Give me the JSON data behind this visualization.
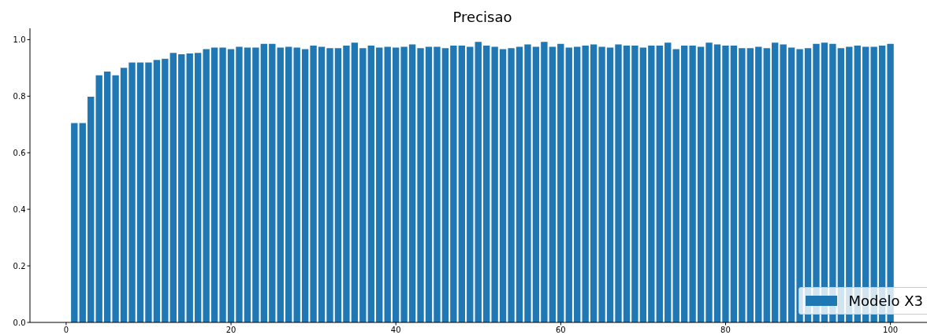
{
  "chart_data": {
    "type": "bar",
    "title": "Precisao",
    "x": [
      1,
      2,
      3,
      4,
      5,
      6,
      7,
      8,
      9,
      10,
      11,
      12,
      13,
      14,
      15,
      16,
      17,
      18,
      19,
      20,
      21,
      22,
      23,
      24,
      25,
      26,
      27,
      28,
      29,
      30,
      31,
      32,
      33,
      34,
      35,
      36,
      37,
      38,
      39,
      40,
      41,
      42,
      43,
      44,
      45,
      46,
      47,
      48,
      49,
      50,
      51,
      52,
      53,
      54,
      55,
      56,
      57,
      58,
      59,
      60,
      61,
      62,
      63,
      64,
      65,
      66,
      67,
      68,
      69,
      70,
      71,
      72,
      73,
      74,
      75,
      76,
      77,
      78,
      79,
      80,
      81,
      82,
      83,
      84,
      85,
      86,
      87,
      88,
      89,
      90,
      91,
      92,
      93,
      94,
      95,
      96,
      97,
      98,
      99,
      100
    ],
    "series": [
      {
        "name": "Modelo X3",
        "color": "#1f77b4",
        "values": [
          0.705,
          0.705,
          0.798,
          0.874,
          0.887,
          0.874,
          0.9,
          0.919,
          0.919,
          0.919,
          0.928,
          0.932,
          0.953,
          0.948,
          0.951,
          0.953,
          0.966,
          0.972,
          0.972,
          0.966,
          0.975,
          0.972,
          0.972,
          0.985,
          0.985,
          0.972,
          0.975,
          0.972,
          0.966,
          0.979,
          0.975,
          0.97,
          0.97,
          0.979,
          0.989,
          0.97,
          0.979,
          0.972,
          0.975,
          0.972,
          0.975,
          0.983,
          0.97,
          0.975,
          0.975,
          0.97,
          0.979,
          0.979,
          0.975,
          0.992,
          0.979,
          0.975,
          0.966,
          0.97,
          0.975,
          0.983,
          0.975,
          0.992,
          0.975,
          0.985,
          0.972,
          0.975,
          0.979,
          0.983,
          0.975,
          0.972,
          0.983,
          0.979,
          0.979,
          0.972,
          0.979,
          0.979,
          0.989,
          0.966,
          0.979,
          0.979,
          0.975,
          0.989,
          0.983,
          0.979,
          0.979,
          0.97,
          0.97,
          0.975,
          0.97,
          0.989,
          0.983,
          0.972,
          0.966,
          0.97,
          0.985,
          0.989,
          0.985,
          0.97,
          0.975,
          0.979,
          0.975,
          0.975,
          0.979,
          0.985
        ]
      }
    ],
    "xlim": [
      -4.39,
      105.39
    ],
    "xticks": [
      0,
      20,
      40,
      60,
      80,
      100
    ],
    "ylim": [
      0,
      1.04
    ],
    "yticks": [
      {
        "value": 0,
        "label": "0.0"
      },
      0.2,
      0.4,
      0.6,
      0.8,
      {
        "value": 1,
        "label": "1.0"
      }
    ],
    "legend": "bottom right"
  }
}
